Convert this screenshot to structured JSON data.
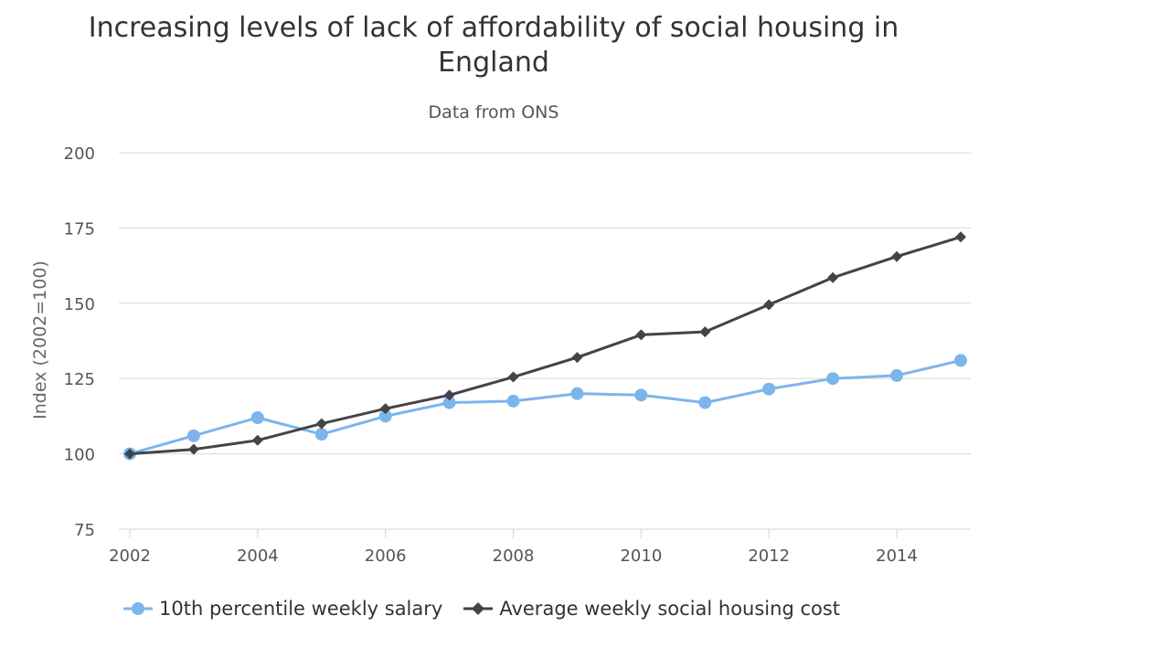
{
  "chart_data": {
    "type": "line",
    "title_lines": [
      "Increasing levels of lack of affordability of social housing in",
      "England"
    ],
    "subtitle": "Data from ONS",
    "xlabel": "",
    "ylabel": "Index (2002=100)",
    "x": [
      2002,
      2003,
      2004,
      2005,
      2006,
      2007,
      2008,
      2009,
      2010,
      2011,
      2012,
      2013,
      2014,
      2015
    ],
    "xlim": [
      2002,
      2015
    ],
    "ylim": [
      75,
      200
    ],
    "x_ticks": [
      "2002",
      "2004",
      "2006",
      "2008",
      "2010",
      "2012",
      "2014"
    ],
    "y_ticks": [
      "75",
      "100",
      "125",
      "150",
      "175",
      "200"
    ],
    "grid": true,
    "legend_position": "bottom-left",
    "series": [
      {
        "name": "10th percentile weekly salary",
        "color": "#7cb5ec",
        "marker": "circle",
        "values": [
          100,
          106,
          112,
          106.5,
          112.5,
          117,
          117.5,
          120,
          119.5,
          117,
          121.5,
          125,
          126,
          131
        ]
      },
      {
        "name": "Average weekly social housing cost",
        "color": "#434348",
        "marker": "diamond",
        "values": [
          100,
          101.5,
          104.5,
          110,
          115,
          119.5,
          125.5,
          132,
          139.5,
          140.5,
          149.5,
          158.5,
          165.5,
          172
        ]
      }
    ]
  }
}
